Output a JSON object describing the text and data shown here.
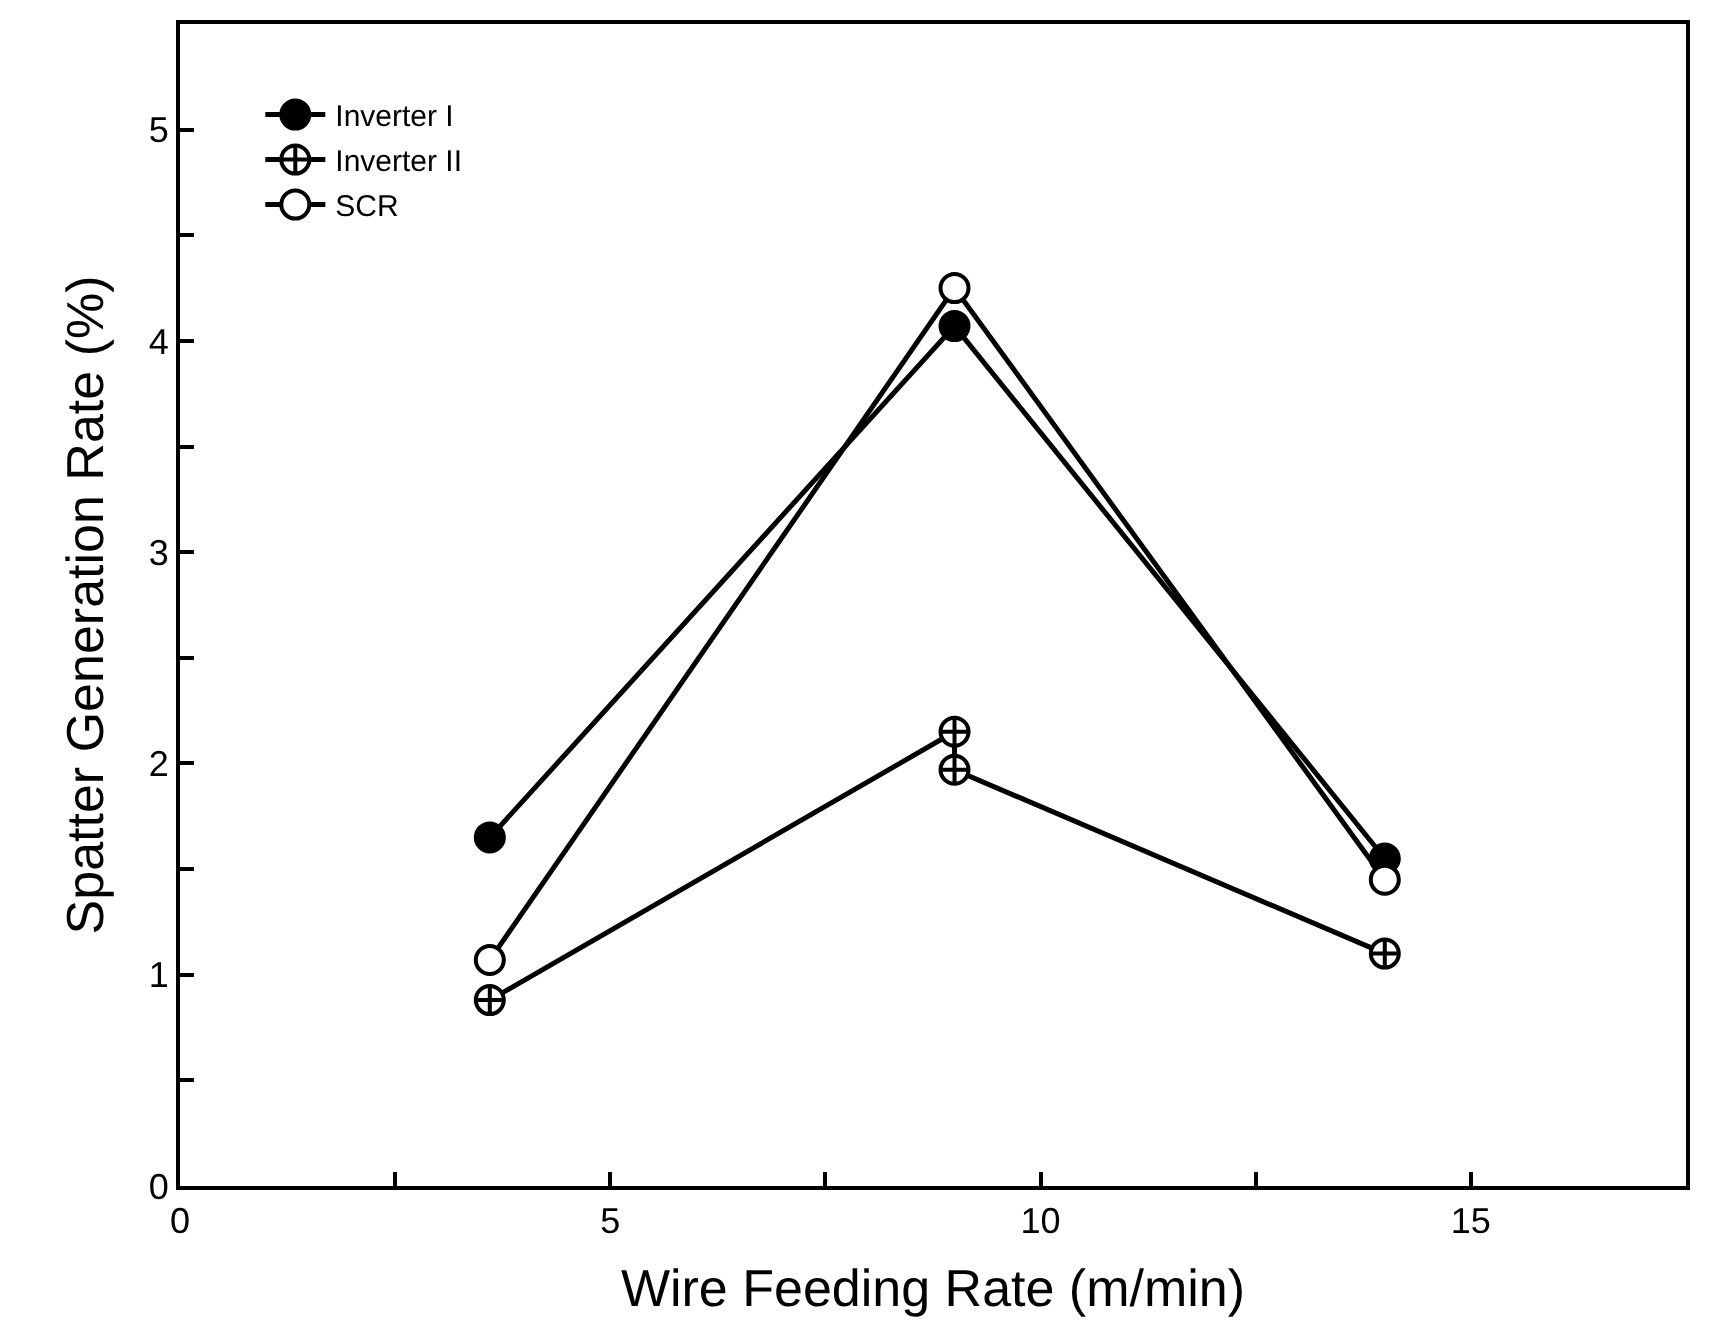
{
  "chart_data": {
    "type": "line",
    "xlabel": "Wire Feeding Rate (m/min)",
    "ylabel": "Spatter Generation Rate (%)",
    "x": [
      3.6,
      9,
      14
    ],
    "series": [
      {
        "name": "Inverter I",
        "color": "#000000",
        "marker": "circle",
        "values": [
          1.65,
          4.07,
          1.55
        ]
      },
      {
        "name": "Inverter II",
        "color": "#000000",
        "marker": "cross",
        "x": [
          3.6,
          9,
          9,
          14
        ],
        "values": [
          0.88,
          2.15,
          1.97,
          1.1
        ]
      },
      {
        "name": "SCR",
        "color": "#000000",
        "marker": "circle-open",
        "values": [
          1.07,
          4.25,
          1.45
        ]
      }
    ],
    "xlim": [
      0,
      17.5
    ],
    "ylim": [
      0,
      5.5
    ],
    "xticks": [
      0,
      {
        "value": 2.5,
        "label": null
      },
      5,
      {
        "value": 7.5,
        "label": null
      },
      10,
      {
        "value": 12.5,
        "label": null
      },
      15,
      {
        "value": 17.5,
        "label": null
      }
    ],
    "yticks": [
      0,
      {
        "value": 0.5,
        "label": null
      },
      1,
      {
        "value": 1.5,
        "label": null
      },
      2,
      {
        "value": 2.5,
        "label": null
      },
      3,
      {
        "value": 3.5,
        "label": null
      },
      4,
      {
        "value": 4.5,
        "label": null
      },
      5
    ],
    "legend": "top left",
    "line_style": "solid"
  }
}
